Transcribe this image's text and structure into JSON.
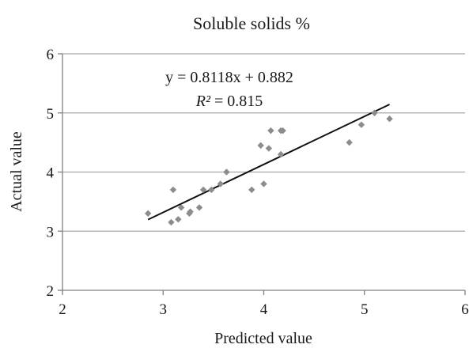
{
  "chart_data": {
    "type": "scatter",
    "title": "Soluble solids %",
    "xlabel": "Predicted value",
    "ylabel": "Actual value",
    "xlim": [
      2,
      6
    ],
    "ylim": [
      2,
      6
    ],
    "x_ticks": [
      2,
      3,
      4,
      5,
      6
    ],
    "y_ticks": [
      2,
      3,
      4,
      5,
      6
    ],
    "grid": "horizontal",
    "point_color": "#8c8c8c",
    "line_color": "#111111",
    "grid_color": "#a6a6a6",
    "series": [
      {
        "points": [
          {
            "x": 2.85,
            "y": 3.3
          },
          {
            "x": 3.08,
            "y": 3.15
          },
          {
            "x": 3.1,
            "y": 3.7
          },
          {
            "x": 3.15,
            "y": 3.2
          },
          {
            "x": 3.18,
            "y": 3.4
          },
          {
            "x": 3.26,
            "y": 3.3
          },
          {
            "x": 3.27,
            "y": 3.33
          },
          {
            "x": 3.36,
            "y": 3.4
          },
          {
            "x": 3.4,
            "y": 3.7
          },
          {
            "x": 3.48,
            "y": 3.7
          },
          {
            "x": 3.57,
            "y": 3.8
          },
          {
            "x": 3.63,
            "y": 4.0
          },
          {
            "x": 3.88,
            "y": 3.7
          },
          {
            "x": 3.97,
            "y": 4.45
          },
          {
            "x": 4.0,
            "y": 3.8
          },
          {
            "x": 4.05,
            "y": 4.4
          },
          {
            "x": 4.07,
            "y": 4.7
          },
          {
            "x": 4.17,
            "y": 4.3
          },
          {
            "x": 4.17,
            "y": 4.7
          },
          {
            "x": 4.19,
            "y": 4.7
          },
          {
            "x": 4.85,
            "y": 4.5
          },
          {
            "x": 4.97,
            "y": 4.8
          },
          {
            "x": 5.1,
            "y": 5.0
          },
          {
            "x": 5.25,
            "y": 4.9
          }
        ]
      }
    ],
    "trendline": {
      "slope": 0.8118,
      "intercept": 0.882,
      "x_range": [
        2.85,
        5.25
      ],
      "equation_text": "y = 0.8118x + 0.882",
      "r2_label": "R²",
      "r2_value_text": " = 0.815"
    }
  }
}
